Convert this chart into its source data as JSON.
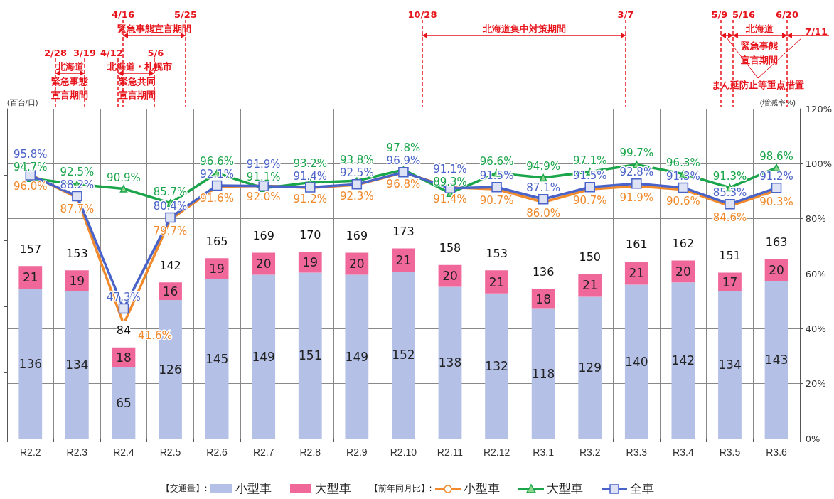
{
  "chart_data": {
    "type": "bar",
    "stacked": true,
    "data_labels": true,
    "grid": true,
    "legend": "bottom",
    "ylabel": "(百台/日)",
    "y2label": "(増減率%)",
    "categories": [
      "R2.2",
      "R2.3",
      "R2.4",
      "R2.5",
      "R2.6",
      "R2.7",
      "R2.8",
      "R2.9",
      "R2.10",
      "R2.11",
      "R2.12",
      "R3.1",
      "R3.2",
      "R3.3",
      "R3.4",
      "R3.5",
      "R3.6"
    ],
    "ylim": [
      0,
      300
    ],
    "yticks": [
      {
        "value": 0,
        "label": null
      },
      {
        "value": 60,
        "label": null
      },
      {
        "value": 120,
        "label": null
      },
      {
        "value": 180,
        "label": null
      },
      {
        "value": 240,
        "label": null
      },
      {
        "value": 300,
        "label": null
      }
    ],
    "y2lim": [
      0,
      120
    ],
    "y2ticks": [
      {
        "value": 0,
        "label": "0%"
      },
      {
        "value": 20,
        "label": "20%"
      },
      {
        "value": 40,
        "label": "40%"
      },
      {
        "value": 60,
        "label": "60%"
      },
      {
        "value": 80,
        "label": "80%"
      },
      {
        "value": 100,
        "label": "100%"
      },
      {
        "value": 120,
        "label": "120%"
      }
    ],
    "series": [
      {
        "name": "小型車",
        "color": "#b4c0e6",
        "values": [
          136,
          134,
          65,
          126,
          145,
          149,
          151,
          149,
          152,
          138,
          132,
          118,
          129,
          140,
          142,
          134,
          143
        ]
      },
      {
        "name": "大型車",
        "color": "#f0679a",
        "values": [
          21,
          19,
          18,
          16,
          19,
          20,
          19,
          20,
          21,
          20,
          21,
          18,
          21,
          21,
          20,
          17,
          20
        ]
      },
      {
        "name": "小型車",
        "type": "line",
        "axis": "y2",
        "marker": "circle",
        "color": "#f08a2c",
        "values": [
          96.0,
          87.7,
          41.6,
          79.7,
          91.6,
          92.0,
          91.2,
          92.3,
          96.8,
          91.4,
          90.7,
          86.0,
          90.7,
          91.9,
          90.6,
          84.6,
          90.3
        ],
        "value_labels": [
          "96.0%",
          "87.7%",
          "41.6%",
          "79.7%",
          "91.6%",
          "92.0%",
          "91.2%",
          "92.3%",
          "96.8%",
          "91.4%",
          "90.7%",
          "86.0%",
          "90.7%",
          "91.9%",
          "90.6%",
          "84.6%",
          "90.3%"
        ]
      },
      {
        "name": "大型車",
        "type": "line",
        "axis": "y2",
        "marker": "triangle",
        "color": "#1aa54a",
        "values": [
          94.7,
          92.5,
          90.9,
          85.7,
          96.6,
          91.1,
          93.2,
          93.8,
          97.8,
          89.3,
          96.6,
          94.9,
          97.1,
          99.7,
          96.3,
          91.3,
          98.6
        ],
        "value_labels": [
          "94.7%",
          "92.5%",
          "90.9%",
          "85.7%",
          "96.6%",
          "91.1%",
          "93.2%",
          "93.8%",
          "97.8%",
          "89.3%",
          "96.6%",
          "94.9%",
          "97.1%",
          "99.7%",
          "96.3%",
          "91.3%",
          "98.6%"
        ]
      },
      {
        "name": "全車",
        "type": "line",
        "axis": "y2",
        "marker": "square",
        "color": "#4a63c8",
        "values": [
          95.8,
          88.2,
          47.3,
          80.4,
          92.1,
          91.9,
          91.4,
          92.5,
          96.9,
          91.1,
          91.5,
          87.1,
          91.5,
          92.8,
          91.3,
          85.3,
          91.2
        ],
        "value_labels": [
          "95.8%",
          "88.2%",
          "47.3%",
          "80.4%",
          "92.1%",
          "91.9%",
          "91.4%",
          "92.5%",
          "96.9%",
          "91.1%",
          "91.5%",
          "87.1%",
          "91.5%",
          "92.8%",
          "91.3%",
          "85.3%",
          "91.2%"
        ]
      }
    ],
    "totals": [
      "157",
      "153",
      "84",
      "142",
      "165",
      "169",
      "170",
      "169",
      "173",
      "158",
      "153",
      "136",
      "150",
      "161",
      "162",
      "151",
      "163"
    ],
    "annotations": [
      "2/28",
      "3/19",
      "北海道",
      "緊急事態",
      "宣言期間",
      "4/12",
      "5/6",
      "北海道・札幌市",
      "緊急共同",
      "宣言期間",
      "4/16",
      "5/25",
      "緊急事態宣言期間",
      "10/28",
      "3/7",
      "北海道集中対策期間",
      "5/9",
      "5/16",
      "6/20",
      "7/11",
      "北海道",
      "緊急事態",
      "宣言期間",
      "まん延防止等重点措置",
      "【交通量】:",
      "【前年同月比】:"
    ]
  }
}
